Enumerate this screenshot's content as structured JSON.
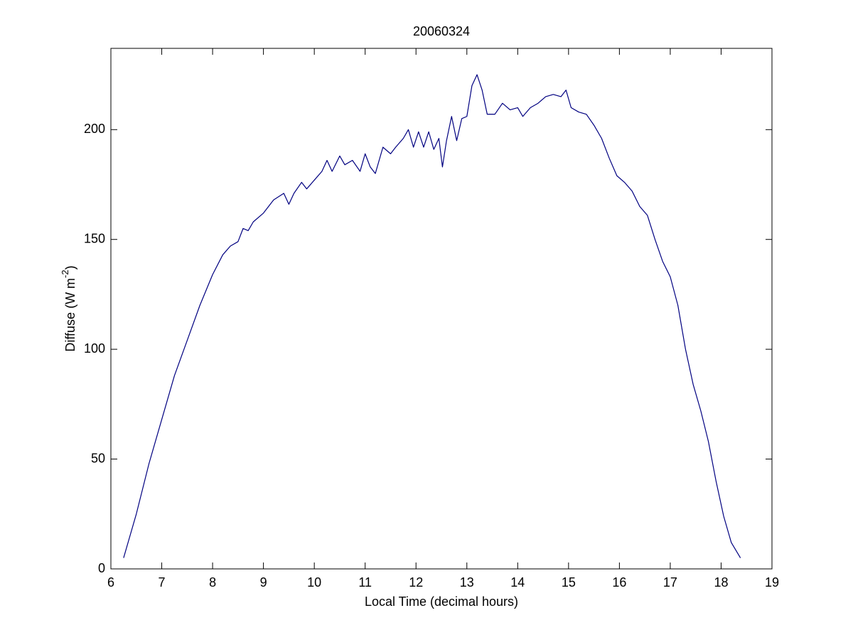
{
  "chart_data": {
    "type": "line",
    "title": "20060324",
    "xlabel": "Local Time (decimal hours)",
    "ylabel": {
      "base": "Diffuse (W m",
      "superscript": "-2",
      "end": ")"
    },
    "x": [
      6.25,
      6.5,
      6.75,
      7.0,
      7.25,
      7.5,
      7.75,
      8.0,
      8.2,
      8.35,
      8.5,
      8.6,
      8.7,
      8.8,
      9.0,
      9.2,
      9.4,
      9.5,
      9.6,
      9.75,
      9.85,
      10.0,
      10.15,
      10.25,
      10.35,
      10.5,
      10.6,
      10.75,
      10.9,
      11.0,
      11.1,
      11.2,
      11.35,
      11.5,
      11.6,
      11.75,
      11.85,
      11.95,
      12.05,
      12.15,
      12.25,
      12.35,
      12.45,
      12.52,
      12.6,
      12.7,
      12.8,
      12.9,
      13.0,
      13.1,
      13.2,
      13.3,
      13.4,
      13.55,
      13.7,
      13.85,
      14.0,
      14.1,
      14.25,
      14.4,
      14.55,
      14.7,
      14.85,
      14.95,
      15.05,
      15.2,
      15.35,
      15.5,
      15.65,
      15.8,
      15.95,
      16.1,
      16.25,
      16.4,
      16.55,
      16.7,
      16.85,
      17.0,
      17.15,
      17.3,
      17.45,
      17.6,
      17.75,
      17.9,
      18.05,
      18.2,
      18.38
    ],
    "values": [
      5,
      25,
      48,
      68,
      88,
      104,
      120,
      134,
      143,
      147,
      149,
      155,
      154,
      158,
      162,
      168,
      171,
      166,
      171,
      176,
      173,
      177,
      181,
      186,
      181,
      188,
      184,
      186,
      181,
      189,
      183,
      180,
      192,
      189,
      192,
      196,
      200,
      192,
      199,
      192,
      199,
      191,
      196,
      183,
      195,
      206,
      195,
      205,
      206,
      220,
      225,
      218,
      207,
      207,
      212,
      209,
      210,
      206,
      210,
      212,
      215,
      216,
      215,
      218,
      210,
      208,
      207,
      202,
      196,
      187,
      179,
      176,
      172,
      165,
      161,
      150,
      140,
      133,
      120,
      100,
      84,
      72,
      58,
      40,
      24,
      12,
      5
    ],
    "color": "#000080",
    "xlim": [
      6,
      19
    ],
    "xticks": [
      6,
      7,
      8,
      9,
      10,
      11,
      12,
      13,
      14,
      15,
      16,
      17,
      18,
      19
    ],
    "ylim": [
      0,
      237
    ],
    "yticks": [
      0,
      50,
      100,
      150,
      200
    ]
  }
}
